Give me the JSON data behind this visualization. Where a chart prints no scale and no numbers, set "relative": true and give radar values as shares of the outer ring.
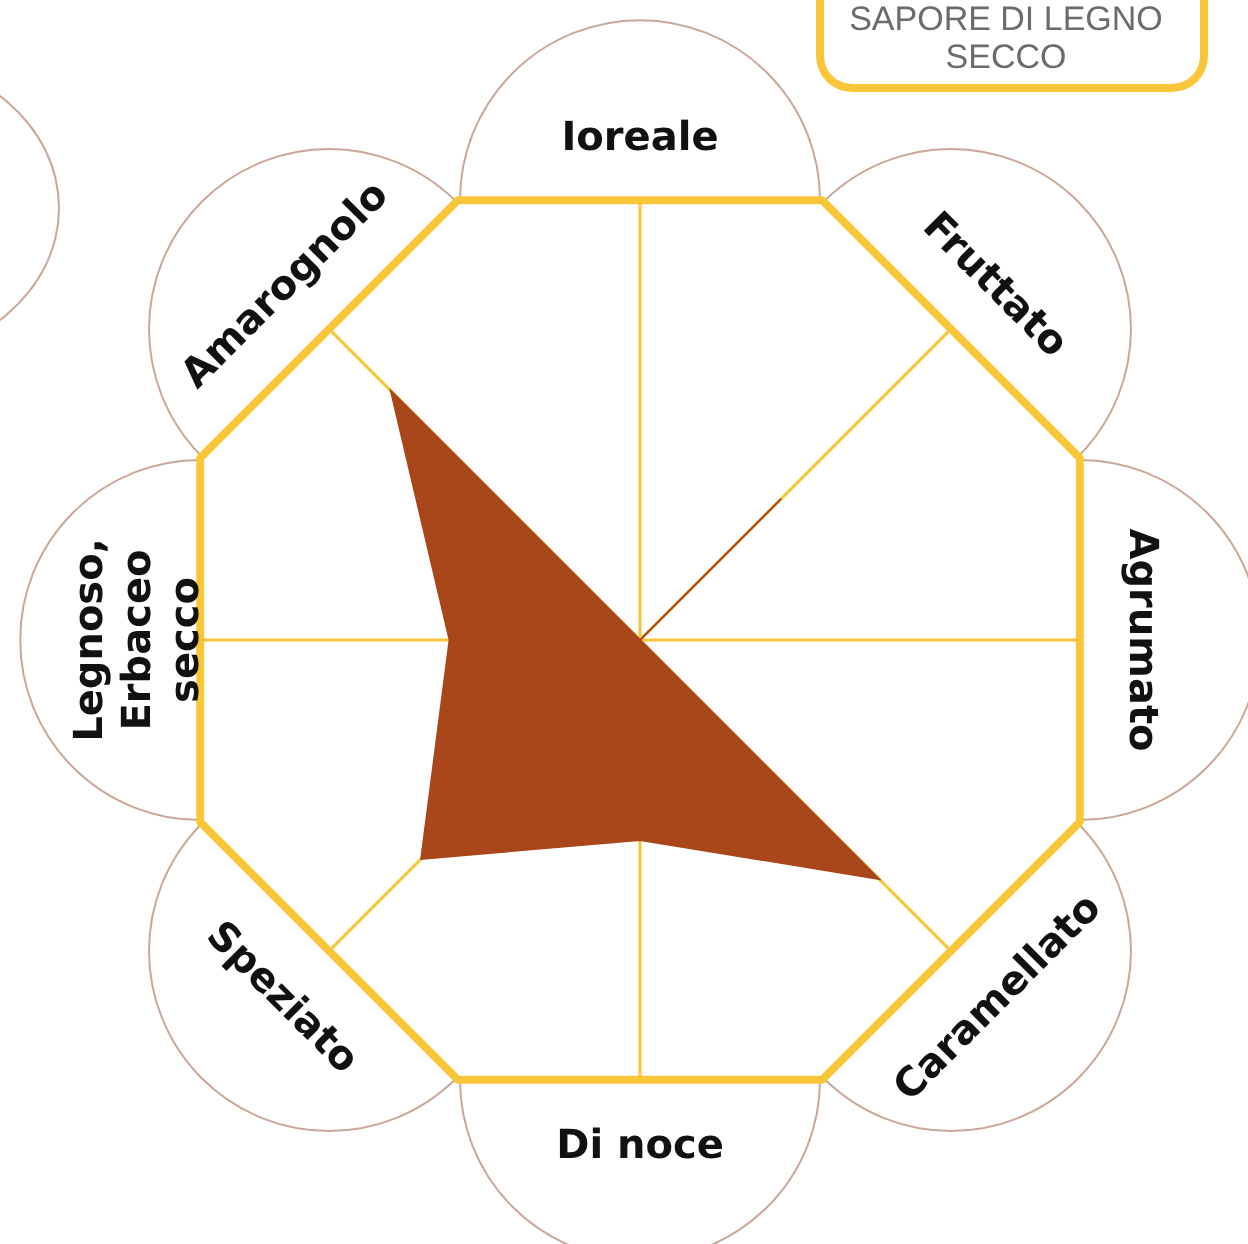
{
  "chart_data": {
    "type": "radar",
    "title": "SAPORE DI LEGNO SECCO",
    "relative": true,
    "categories": [
      "Ioreale",
      "Fruttato",
      "Agrumato",
      "Caramellato",
      "Di noce",
      "Speziato",
      "Legnoso, Erbaceo secco",
      "Amarognolo"
    ],
    "series": [
      {
        "color": "#a9461a",
        "values": [
          0,
          0.42,
          0,
          0.71,
          0.42,
          0.65,
          0.4,
          0.74
        ]
      }
    ]
  }
}
